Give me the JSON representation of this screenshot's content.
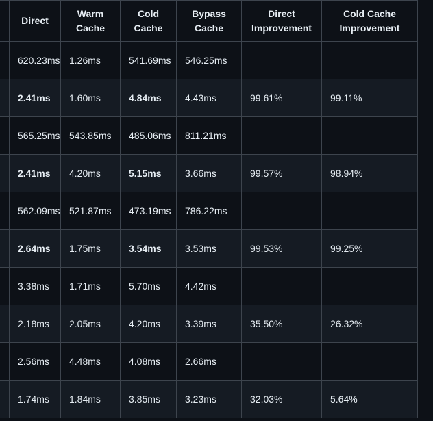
{
  "table": {
    "headers": [
      "",
      "Direct",
      "Warm Cache",
      "Cold Cache",
      "Bypass Cache",
      "Direct Improvement",
      "Cold Cache Improvement"
    ],
    "rows": [
      {
        "cells": [
          "",
          "620.23ms",
          "1.26ms",
          "541.69ms",
          "546.25ms",
          "",
          ""
        ],
        "emph": false
      },
      {
        "cells": [
          "",
          "2.41ms",
          "1.60ms",
          "4.84ms",
          "4.43ms",
          "99.61%",
          "99.11%"
        ],
        "emph": true
      },
      {
        "cells": [
          "",
          "565.25ms",
          "543.85ms",
          "485.06ms",
          "811.21ms",
          "",
          ""
        ],
        "emph": false
      },
      {
        "cells": [
          "",
          "2.41ms",
          "4.20ms",
          "5.15ms",
          "3.66ms",
          "99.57%",
          "98.94%"
        ],
        "emph": true
      },
      {
        "cells": [
          "",
          "562.09ms",
          "521.87ms",
          "473.19ms",
          "786.22ms",
          "",
          ""
        ],
        "emph": false
      },
      {
        "cells": [
          "",
          "2.64ms",
          "1.75ms",
          "3.54ms",
          "3.53ms",
          "99.53%",
          "99.25%"
        ],
        "emph": true
      },
      {
        "cells": [
          "",
          "3.38ms",
          "1.71ms",
          "5.70ms",
          "4.42ms",
          "",
          ""
        ],
        "emph": false
      },
      {
        "cells": [
          "",
          "2.18ms",
          "2.05ms",
          "4.20ms",
          "3.39ms",
          "35.50%",
          "26.32%"
        ],
        "emph": false
      },
      {
        "cells": [
          "",
          "2.56ms",
          "4.48ms",
          "4.08ms",
          "2.66ms",
          "",
          ""
        ],
        "emph": false
      },
      {
        "cells": [
          "",
          "1.74ms",
          "1.84ms",
          "3.85ms",
          "3.23ms",
          "32.03%",
          "5.64%"
        ],
        "emph": false
      }
    ]
  },
  "colors": {
    "background": "#0d1117",
    "row_alt": "#151b23",
    "border": "#3d444d",
    "text": "#e6edf3"
  }
}
